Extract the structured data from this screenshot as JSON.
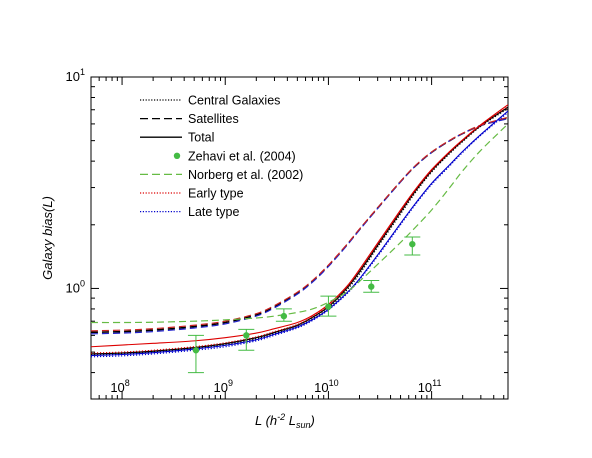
{
  "chart_data": {
    "type": "line",
    "title": "",
    "xlabel": "L (h^-2 L_sun)",
    "ylabel": "Galaxy bias(L)",
    "xscale": "log",
    "yscale": "log",
    "xlim": [
      50000000,
      550000000000
    ],
    "ylim": [
      0.3,
      10
    ],
    "grid": false,
    "legend_position": "top-left",
    "y_ticks": [
      {
        "value": 1,
        "base": "10",
        "exp": "0"
      },
      {
        "value": 10,
        "base": "10",
        "exp": "1"
      }
    ],
    "x_ticks": [
      {
        "value": 100000000,
        "base": "10",
        "exp": "8"
      },
      {
        "value": 1000000000,
        "base": "10",
        "exp": "9"
      },
      {
        "value": 10000000000,
        "base": "10",
        "exp": "10"
      },
      {
        "value": 100000000000,
        "base": "10",
        "exp": "11"
      }
    ],
    "legend": [
      {
        "name": "Central Galaxies",
        "color": "#000000",
        "style": "dotted"
      },
      {
        "name": "Satellites",
        "color": "#000000",
        "style": "dashed"
      },
      {
        "name": "Total",
        "color": "#000000",
        "style": "solid"
      },
      {
        "name": "Zehavi et al. (2004)",
        "color": "#44bb44",
        "style": "marker"
      },
      {
        "name": "Norberg et al. (2002)",
        "color": "#66bb44",
        "style": "dashed"
      },
      {
        "name": "Early type",
        "color": "#dd0000",
        "style": "dotted"
      },
      {
        "name": "Late type",
        "color": "#0000cc",
        "style": "dotted"
      }
    ],
    "x": [
      50000000,
      100000000,
      200000000,
      500000000,
      1000000000,
      2000000000,
      3000000000,
      5000000000,
      7000000000,
      10000000000,
      15000000000,
      20000000000,
      30000000000,
      50000000000,
      70000000000,
      100000000000,
      150000000000,
      200000000000,
      300000000000,
      550000000000
    ],
    "series": [
      {
        "style": "solid",
        "color": "#000000",
        "width": 1.3,
        "values": [
          0.49,
          0.495,
          0.505,
          0.525,
          0.548,
          0.585,
          0.62,
          0.67,
          0.73,
          0.82,
          1.0,
          1.2,
          1.6,
          2.3,
          2.9,
          3.6,
          4.4,
          5.0,
          5.9,
          7.2
        ]
      },
      {
        "style": "dotted",
        "color": "#000000",
        "width": 1.2,
        "values": [
          0.485,
          0.49,
          0.5,
          0.52,
          0.542,
          0.578,
          0.612,
          0.66,
          0.718,
          0.805,
          0.98,
          1.17,
          1.57,
          2.25,
          2.85,
          3.55,
          4.35,
          4.95,
          5.85,
          7.1
        ]
      },
      {
        "style": "dashed",
        "color": "#000000",
        "width": 1.6,
        "values": [
          0.62,
          0.625,
          0.635,
          0.66,
          0.69,
          0.75,
          0.82,
          0.95,
          1.08,
          1.28,
          1.6,
          1.9,
          2.4,
          3.2,
          3.8,
          4.4,
          5.0,
          5.4,
          5.9,
          6.4
        ]
      },
      {
        "style": "dashed",
        "color": "#2222cc",
        "width": 1.2,
        "values": [
          0.61,
          0.615,
          0.625,
          0.65,
          0.68,
          0.74,
          0.81,
          0.94,
          1.07,
          1.27,
          1.59,
          1.89,
          2.39,
          3.19,
          3.8,
          4.4,
          5.0,
          5.4,
          5.9,
          6.35
        ]
      },
      {
        "style": "dashed",
        "color": "#cc2222",
        "width": 1.2,
        "values": [
          0.63,
          0.635,
          0.645,
          0.67,
          0.7,
          0.76,
          0.83,
          0.96,
          1.09,
          1.29,
          1.61,
          1.91,
          2.41,
          3.21,
          3.82,
          4.42,
          5.02,
          5.42,
          5.92,
          6.45
        ]
      },
      {
        "style": "dotted",
        "color": "#dd0000",
        "width": 1.2,
        "values": [
          0.495,
          0.5,
          0.51,
          0.53,
          0.553,
          0.59,
          0.625,
          0.675,
          0.735,
          0.83,
          1.01,
          1.22,
          1.62,
          2.32,
          2.92,
          3.62,
          4.42,
          5.02,
          5.92,
          7.25
        ]
      },
      {
        "style": "solid",
        "color": "#dd0000",
        "width": 1.1,
        "values": [
          0.53,
          0.54,
          0.55,
          0.565,
          0.585,
          0.615,
          0.645,
          0.69,
          0.745,
          0.84,
          1.02,
          1.23,
          1.64,
          2.35,
          2.95,
          3.65,
          4.45,
          5.05,
          5.95,
          7.4
        ]
      },
      {
        "style": "dotted",
        "color": "#0000cc",
        "width": 1.2,
        "values": [
          0.475,
          0.48,
          0.49,
          0.51,
          0.53,
          0.565,
          0.6,
          0.65,
          0.705,
          0.79,
          0.94,
          1.1,
          1.42,
          2.0,
          2.5,
          3.1,
          3.8,
          4.4,
          5.3,
          6.8
        ]
      },
      {
        "style": "solid",
        "color": "#0000cc",
        "width": 1.1,
        "values": [
          0.482,
          0.487,
          0.497,
          0.517,
          0.538,
          0.572,
          0.607,
          0.657,
          0.712,
          0.797,
          0.95,
          1.11,
          1.44,
          2.03,
          2.53,
          3.14,
          3.85,
          4.45,
          5.35,
          6.9
        ]
      },
      {
        "style": "dashed",
        "color": "#66bb44",
        "width": 1.2,
        "values": [
          0.69,
          0.69,
          0.692,
          0.7,
          0.71,
          0.725,
          0.74,
          0.77,
          0.8,
          0.86,
          0.96,
          1.08,
          1.3,
          1.65,
          1.95,
          2.35,
          3.0,
          3.6,
          4.5,
          6.0
        ]
      }
    ],
    "points": [
      {
        "x": 520000000,
        "y": 0.51,
        "lo": 0.4,
        "hi": 0.6
      },
      {
        "x": 1600000000,
        "y": 0.6,
        "lo": 0.51,
        "hi": 0.64
      },
      {
        "x": 3700000000,
        "y": 0.74,
        "lo": 0.7,
        "hi": 0.8
      },
      {
        "x": 10000000000,
        "y": 0.82,
        "lo": 0.74,
        "hi": 0.92
      },
      {
        "x": 26000000000,
        "y": 1.02,
        "lo": 0.96,
        "hi": 1.09
      },
      {
        "x": 65000000000,
        "y": 1.62,
        "lo": 1.44,
        "hi": 1.75
      }
    ],
    "points_color": "#44bb44"
  }
}
